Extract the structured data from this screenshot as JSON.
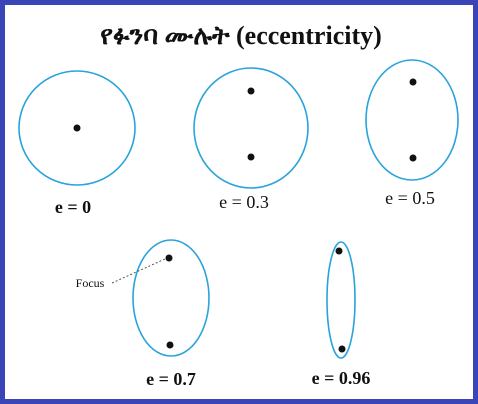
{
  "title": "የፉንባ ሙሉት (eccentricity)",
  "ellipses": [
    {
      "label": "e = 0"
    },
    {
      "label": "e = 0.3"
    },
    {
      "label": "e = 0.5"
    },
    {
      "label": "e = 0.7"
    },
    {
      "label": "e = 0.96"
    }
  ],
  "annotation": "Focus"
}
